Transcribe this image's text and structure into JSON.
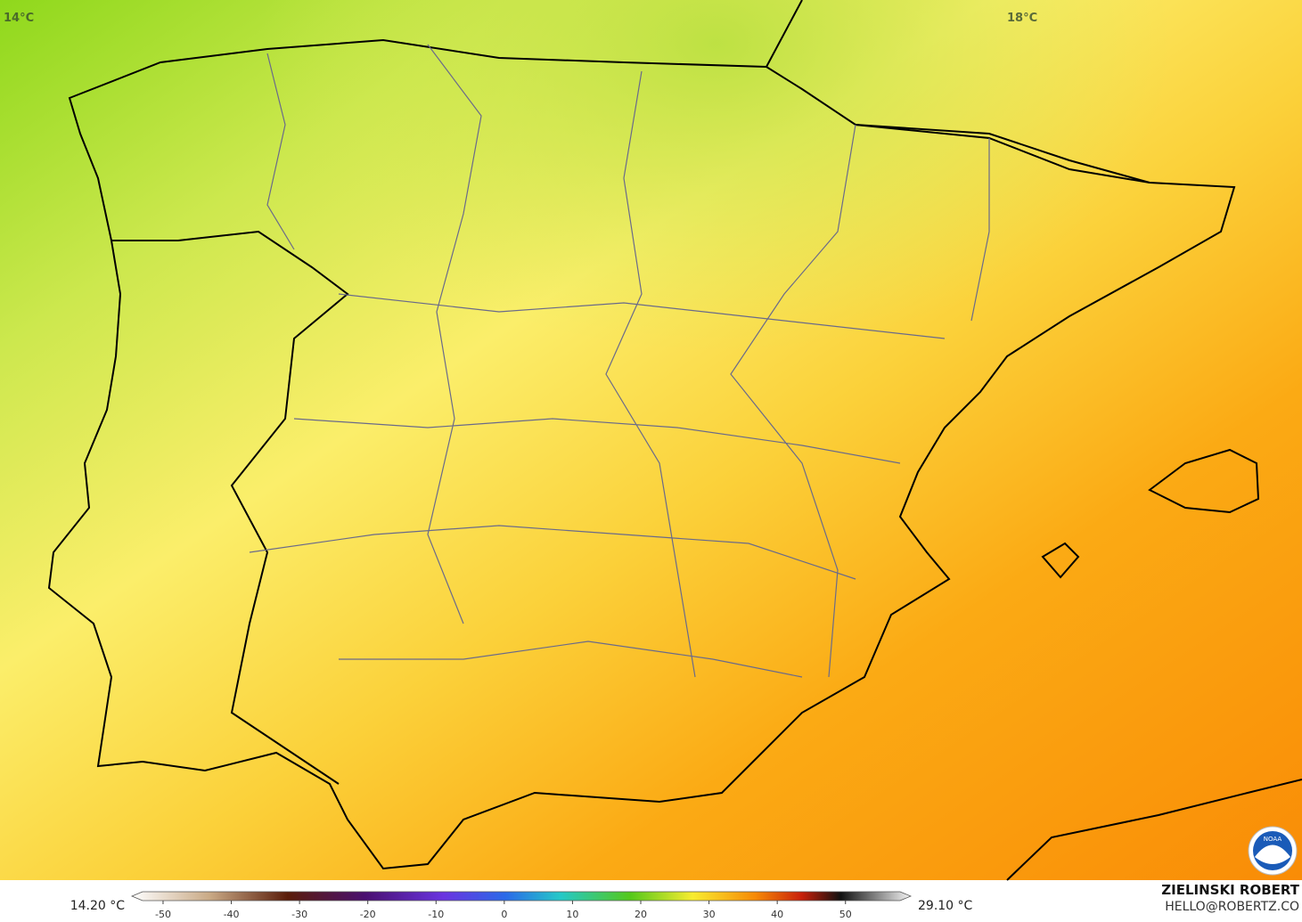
{
  "map": {
    "contour_labels": [
      "14°C",
      "18°C"
    ]
  },
  "legend": {
    "min_label": "14.20 °C",
    "max_label": "29.10 °C",
    "ticks": [
      -50,
      -40,
      -30,
      -20,
      -10,
      0,
      10,
      20,
      30,
      40,
      50
    ],
    "range": [
      -53,
      58
    ]
  },
  "credit": {
    "name": "ZIELINSKI ROBERT",
    "email": "HELLO@ROBERTZ.CO",
    "logo": "NOAA"
  }
}
